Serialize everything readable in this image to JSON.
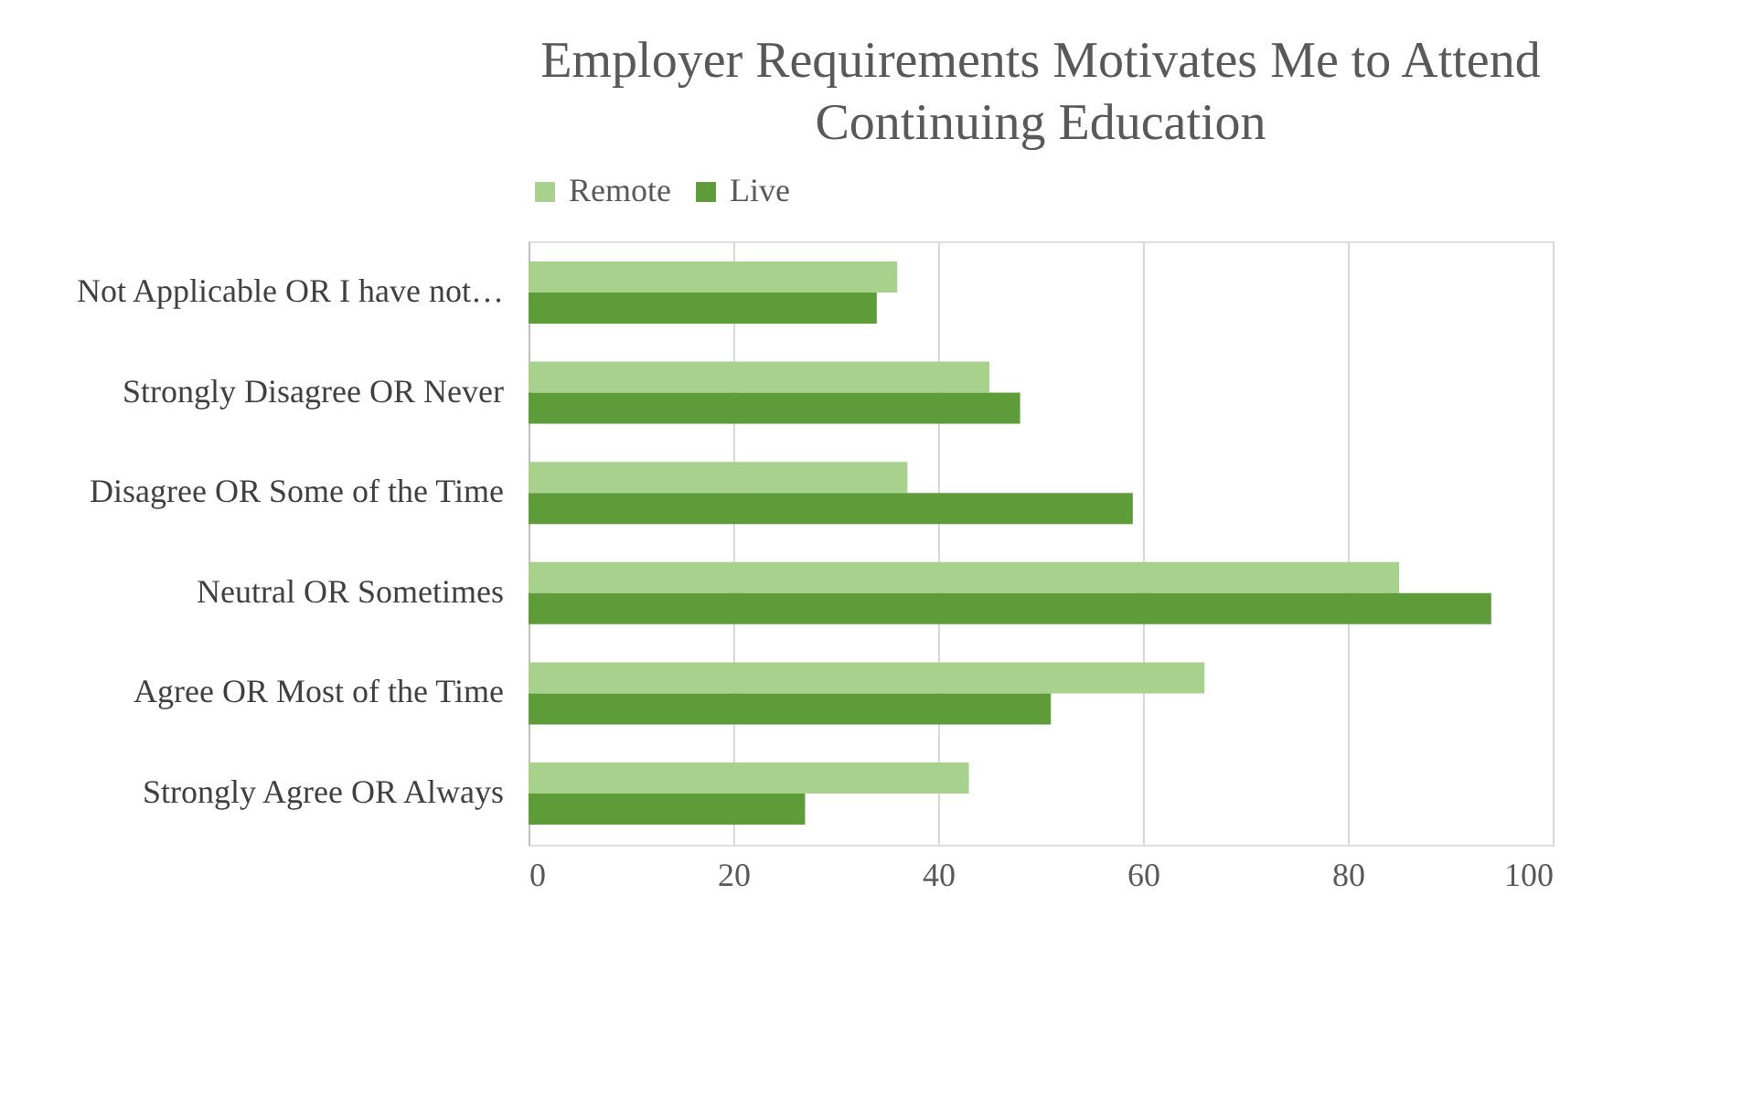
{
  "chart_data": {
    "type": "bar",
    "orientation": "horizontal",
    "title": "Employer Requirements Motivates Me to Attend Continuing Education",
    "categories": [
      "Not Applicable OR I have not…",
      "Strongly Disagree OR Never",
      "Disagree OR Some of the Time",
      "Neutral OR Sometimes",
      "Agree OR Most of the Time",
      "Strongly Agree OR Always"
    ],
    "series": [
      {
        "name": "Remote",
        "color": "#a9d18e",
        "values": [
          36,
          45,
          37,
          85,
          66,
          43
        ]
      },
      {
        "name": "Live",
        "color": "#5e9c3a",
        "values": [
          34,
          48,
          59,
          94,
          51,
          27
        ]
      }
    ],
    "xlim": [
      0,
      100
    ],
    "xticks": [
      0,
      20,
      40,
      60,
      80,
      100
    ],
    "grid": "x",
    "legend": "top"
  }
}
